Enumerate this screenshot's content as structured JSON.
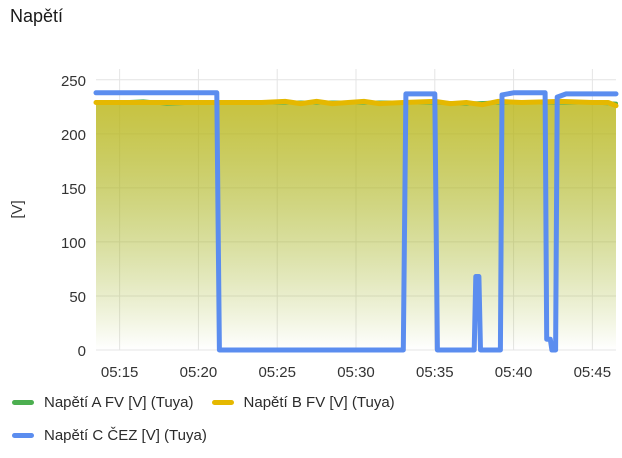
{
  "card": {
    "title": "Napětí"
  },
  "chart_data": {
    "type": "line",
    "title": "",
    "xlabel": "",
    "ylabel": "[V]",
    "xlim": [
      "05:13:30",
      "05:46:30"
    ],
    "ylim": [
      0,
      260
    ],
    "x_ticks": [
      "05:15",
      "05:20",
      "05:25",
      "05:30",
      "05:35",
      "05:40",
      "05:45"
    ],
    "y_ticks": [
      0,
      50,
      100,
      150,
      200,
      250
    ],
    "grid": true,
    "legend_position": "bottom",
    "series": [
      {
        "name": "Napětí A FV [V] (Tuya)",
        "color": "#4caf50",
        "fill": true,
        "points": [
          [
            "05:13:30",
            229
          ],
          [
            "05:15:00",
            229
          ],
          [
            "05:16:30",
            230
          ],
          [
            "05:18:00",
            228
          ],
          [
            "05:20:00",
            229
          ],
          [
            "05:22:00",
            229
          ],
          [
            "05:25:00",
            229
          ],
          [
            "05:30:00",
            229
          ],
          [
            "05:33:00",
            229
          ],
          [
            "05:35:00",
            229
          ],
          [
            "05:37:00",
            228
          ],
          [
            "05:39:00",
            229
          ],
          [
            "05:41:00",
            229
          ],
          [
            "05:43:00",
            229
          ],
          [
            "05:45:00",
            229
          ],
          [
            "05:46:30",
            228
          ]
        ]
      },
      {
        "name": "Napětí B FV [V] (Tuya)",
        "color": "#e5b800",
        "fill": true,
        "points": [
          [
            "05:13:30",
            229
          ],
          [
            "05:16:00",
            229
          ],
          [
            "05:20:00",
            229
          ],
          [
            "05:22:00",
            229
          ],
          [
            "05:24:00",
            229
          ],
          [
            "05:25:30",
            230
          ],
          [
            "05:26:30",
            228
          ],
          [
            "05:27:30",
            230
          ],
          [
            "05:28:30",
            228
          ],
          [
            "05:29:30",
            229
          ],
          [
            "05:30:30",
            230
          ],
          [
            "05:31:30",
            228
          ],
          [
            "05:33:00",
            229
          ],
          [
            "05:35:00",
            230
          ],
          [
            "05:36:00",
            228
          ],
          [
            "05:37:00",
            229
          ],
          [
            "05:38:00",
            227
          ],
          [
            "05:39:00",
            230
          ],
          [
            "05:40:30",
            229
          ],
          [
            "05:43:00",
            230
          ],
          [
            "05:45:00",
            229
          ],
          [
            "05:46:00",
            229
          ],
          [
            "05:46:30",
            226
          ]
        ]
      },
      {
        "name": "Napětí C ČEZ [V] (Tuya)",
        "color": "#5b8def",
        "fill": false,
        "points": [
          [
            "05:13:30",
            238
          ],
          [
            "05:21:10",
            238
          ],
          [
            "05:21:20",
            0
          ],
          [
            "05:33:00",
            0
          ],
          [
            "05:33:10",
            237
          ],
          [
            "05:35:00",
            237
          ],
          [
            "05:35:10",
            0
          ],
          [
            "05:37:30",
            0
          ],
          [
            "05:37:36",
            68
          ],
          [
            "05:37:48",
            68
          ],
          [
            "05:37:54",
            0
          ],
          [
            "05:39:10",
            0
          ],
          [
            "05:39:16",
            236
          ],
          [
            "05:40:00",
            238
          ],
          [
            "05:42:00",
            238
          ],
          [
            "05:42:06",
            10
          ],
          [
            "05:42:20",
            10
          ],
          [
            "05:42:26",
            0
          ],
          [
            "05:42:40",
            0
          ],
          [
            "05:42:46",
            234
          ],
          [
            "05:43:20",
            237
          ],
          [
            "05:46:30",
            237
          ]
        ]
      }
    ]
  },
  "legend": [
    {
      "label": "Napětí A FV [V] (Tuya)",
      "color": "#4caf50"
    },
    {
      "label": "Napětí B FV [V] (Tuya)",
      "color": "#e5b800"
    },
    {
      "label": "Napětí C ČEZ [V] (Tuya)",
      "color": "#5b8def"
    }
  ]
}
